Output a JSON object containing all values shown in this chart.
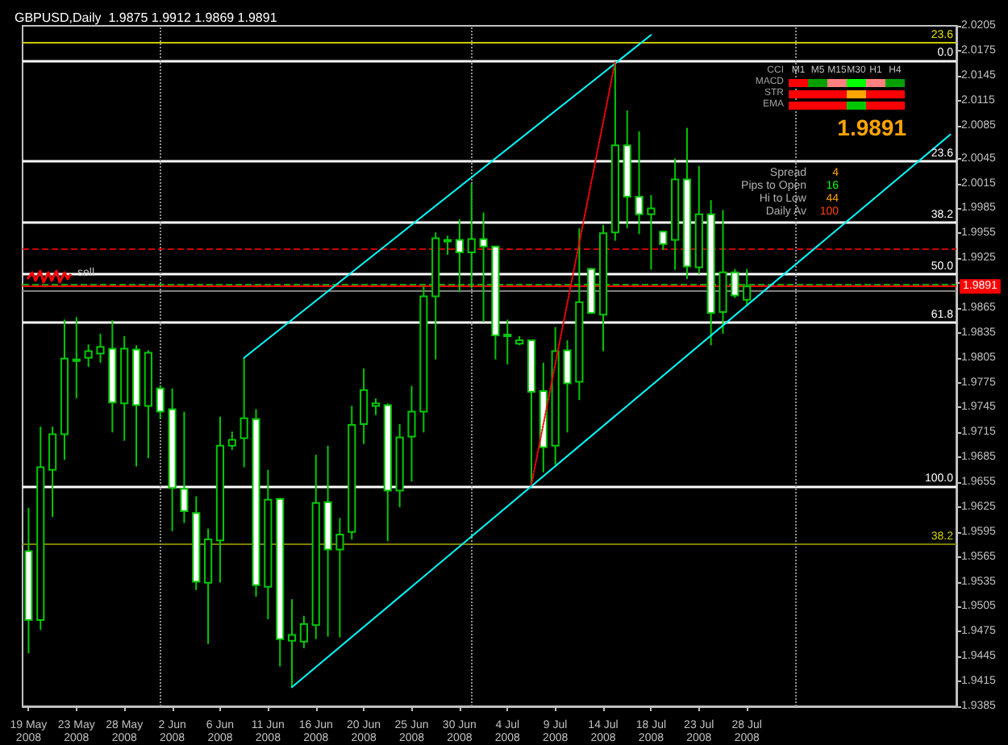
{
  "chart_data": {
    "type": "candlestick",
    "title": "GBPUSD,Daily  1.9875 1.9912 1.9869 1.9891",
    "color": "#00c800",
    "categories": [
      "19 May 2008",
      null,
      null,
      null,
      "23 May 2008",
      null,
      null,
      null,
      "28 May 2008",
      null,
      null,
      null,
      "2 Jun 2008",
      null,
      null,
      null,
      "6 Jun 2008",
      null,
      null,
      null,
      "11 Jun 2008",
      null,
      null,
      null,
      "16 Jun 2008",
      null,
      null,
      null,
      "20 Jun 2008",
      null,
      null,
      null,
      "25 Jun 2008",
      null,
      null,
      null,
      "30 Jun 2008",
      null,
      null,
      null,
      "4 Jul 2008",
      null,
      null,
      null,
      "9 Jul 2008",
      null,
      null,
      null,
      "14 Jul 2008",
      null,
      null,
      null,
      "18 Jul 2008",
      null,
      null,
      null,
      "23 Jul 2008",
      null,
      null,
      null,
      "28 Jul 2008",
      null,
      null,
      null,
      null,
      null,
      null,
      null,
      null,
      null,
      null,
      null,
      null,
      null,
      null,
      null,
      null,
      null
    ],
    "ohlc": [
      [
        1.9572,
        1.9624,
        1.9449,
        1.9489
      ],
      [
        1.9489,
        1.9722,
        1.9477,
        1.9673
      ],
      [
        1.967,
        1.9722,
        1.9613,
        1.9713
      ],
      [
        1.9713,
        1.9851,
        1.9682,
        1.9804
      ],
      [
        1.9802,
        1.9854,
        1.9756,
        1.9803
      ],
      [
        1.9805,
        1.9821,
        1.9794,
        1.9813
      ],
      [
        1.981,
        1.9834,
        1.9799,
        1.9818
      ],
      [
        1.9816,
        1.985,
        1.9715,
        1.9751
      ],
      [
        1.975,
        1.9831,
        1.9705,
        1.9816
      ],
      [
        1.9815,
        1.982,
        1.9674,
        1.9748
      ],
      [
        1.9747,
        1.9814,
        1.9684,
        1.9811
      ],
      [
        1.9768,
        1.9772,
        1.9731,
        1.974
      ],
      [
        1.9743,
        1.9768,
        1.9596,
        1.9648
      ],
      [
        1.9647,
        1.974,
        1.9606,
        1.962
      ],
      [
        1.9618,
        1.9638,
        1.9525,
        1.9535
      ],
      [
        1.9534,
        1.9599,
        1.946,
        1.9586
      ],
      [
        1.9585,
        1.9734,
        1.9534,
        1.9699
      ],
      [
        1.9699,
        1.9716,
        1.9694,
        1.9706
      ],
      [
        1.9708,
        1.9805,
        1.9673,
        1.9732
      ],
      [
        1.9731,
        1.9743,
        1.9517,
        1.9531
      ],
      [
        1.9529,
        1.967,
        1.949,
        1.9634
      ],
      [
        1.9635,
        1.9636,
        1.9433,
        1.9466
      ],
      [
        1.9464,
        1.9514,
        1.9408,
        1.9471
      ],
      [
        1.9463,
        1.9494,
        1.9455,
        1.9484
      ],
      [
        1.9483,
        1.9688,
        1.9466,
        1.963
      ],
      [
        1.9631,
        1.9699,
        1.9469,
        1.9574
      ],
      [
        1.9574,
        1.9612,
        1.9468,
        1.9592
      ],
      [
        1.9595,
        1.9747,
        1.9586,
        1.9724
      ],
      [
        1.9725,
        1.9792,
        1.9701,
        1.9766
      ],
      [
        1.9747,
        1.9756,
        1.9736,
        1.975
      ],
      [
        1.9748,
        1.975,
        1.9584,
        1.9645
      ],
      [
        1.9645,
        1.9725,
        1.9625,
        1.9709
      ],
      [
        1.971,
        1.9771,
        1.9656,
        1.974
      ],
      [
        1.974,
        1.9891,
        1.9715,
        1.9879
      ],
      [
        1.9879,
        1.9956,
        1.9803,
        1.9949
      ],
      [
        1.9946,
        1.9952,
        1.9929,
        1.9947
      ],
      [
        1.9947,
        1.9972,
        1.9884,
        1.9932
      ],
      [
        1.9932,
        2.0015,
        1.9889,
        1.9948
      ],
      [
        1.9948,
        1.998,
        1.9848,
        1.9939
      ],
      [
        1.9939,
        1.994,
        1.9803,
        1.9832
      ],
      [
        1.9833,
        1.9851,
        1.9797,
        1.9831
      ],
      [
        1.9822,
        1.9831,
        1.982,
        1.9826
      ],
      [
        1.9826,
        1.9827,
        1.9652,
        1.9764
      ],
      [
        1.9765,
        1.9799,
        1.9667,
        1.9697
      ],
      [
        1.9699,
        1.9842,
        1.9676,
        1.9813
      ],
      [
        1.9814,
        1.9826,
        1.9715,
        1.9774
      ],
      [
        1.9776,
        1.9961,
        1.9754,
        1.9872
      ],
      [
        1.9912,
        1.9913,
        1.9858,
        1.9859
      ],
      [
        1.9857,
        1.9965,
        1.9813,
        1.9955
      ],
      [
        1.9956,
        2.0162,
        1.9946,
        2.0061
      ],
      [
        2.0061,
        2.0103,
        1.9961,
        1.9999
      ],
      [
        1.9999,
        2.0078,
        1.9954,
        1.9978
      ],
      [
        1.9978,
        2.0001,
        1.9911,
        1.9985
      ],
      [
        1.9957,
        1.9958,
        1.9935,
        1.9942
      ],
      [
        1.9947,
        2.0045,
        1.9911,
        2.002
      ],
      [
        2.002,
        2.0082,
        1.99,
        1.9915
      ],
      [
        1.9914,
        2.0036,
        1.9906,
        1.9978
      ],
      [
        1.9978,
        1.9995,
        1.982,
        1.9859
      ],
      [
        1.986,
        1.9983,
        1.9834,
        1.9908
      ],
      [
        1.9908,
        1.9912,
        1.9877,
        1.988
      ],
      [
        1.9875,
        1.9912,
        1.9869,
        1.9891
      ],
      null,
      null,
      null,
      null,
      null,
      null,
      null,
      null,
      null,
      null,
      null,
      null,
      null,
      null,
      null,
      null,
      null
    ],
    "series": [
      {
        "type": "line",
        "color": "#00ffff",
        "values": [
          null,
          null,
          null,
          null,
          null,
          null,
          null,
          null,
          null,
          null,
          null,
          null,
          null,
          null,
          null,
          null,
          null,
          null,
          1.9805,
          null,
          null,
          null,
          null,
          null,
          null,
          null,
          null,
          null,
          null,
          null,
          null,
          null,
          null,
          null,
          null,
          null,
          null,
          null,
          null,
          null,
          null,
          null,
          null,
          null,
          null,
          null,
          null,
          null,
          null,
          null,
          null,
          null,
          2.0194,
          null,
          null,
          null,
          null,
          null,
          null,
          null,
          null,
          null,
          null,
          null,
          null,
          null,
          null,
          null,
          null,
          null,
          null,
          null,
          null,
          null,
          null,
          null,
          null,
          null
        ]
      },
      {
        "type": "line",
        "color": "#00ffff",
        "values": [
          null,
          null,
          null,
          null,
          null,
          null,
          null,
          null,
          null,
          null,
          null,
          null,
          null,
          null,
          null,
          null,
          null,
          null,
          null,
          null,
          null,
          null,
          1.9408,
          null,
          null,
          null,
          null,
          null,
          null,
          null,
          null,
          null,
          null,
          null,
          null,
          null,
          null,
          null,
          null,
          null,
          null,
          null,
          null,
          null,
          null,
          null,
          null,
          null,
          null,
          null,
          null,
          null,
          null,
          null,
          null,
          null,
          null,
          null,
          null,
          null,
          null,
          null,
          null,
          null,
          null,
          null,
          null,
          null,
          null,
          null,
          null,
          null,
          null,
          null,
          null,
          null,
          null,
          2.0074
        ]
      },
      {
        "type": "line",
        "color": "#ff0000",
        "line_style": "dotted",
        "values": [
          null,
          null,
          null,
          null,
          null,
          null,
          null,
          null,
          null,
          null,
          null,
          null,
          null,
          null,
          null,
          null,
          null,
          null,
          null,
          null,
          null,
          null,
          null,
          null,
          null,
          null,
          null,
          null,
          null,
          null,
          null,
          null,
          null,
          null,
          null,
          null,
          null,
          null,
          null,
          null,
          null,
          null,
          1.9652,
          null,
          null,
          null,
          null,
          null,
          null,
          2.0162,
          null,
          null,
          null,
          null,
          null,
          null,
          null,
          null,
          null,
          null,
          null,
          null,
          null,
          null,
          null,
          null,
          null,
          null,
          null,
          null,
          null,
          null,
          null,
          null,
          null,
          null,
          null,
          null
        ]
      }
    ],
    "grid": "x",
    "ylim": [
      1.9385,
      2.0205
    ],
    "yticks": [
      1.9385,
      1.9415,
      1.9445,
      1.9475,
      1.9505,
      1.9535,
      1.9565,
      1.9595,
      1.9625,
      1.9655,
      1.9685,
      1.9715,
      1.9745,
      1.9775,
      1.9805,
      1.9835,
      1.9865,
      {
        "value": 1.9895,
        "label": null
      },
      1.9925,
      1.9955,
      1.9985,
      2.0015,
      2.0045,
      2.0085,
      2.0115,
      2.0145,
      2.0175,
      2.0205
    ],
    "ref_lines": [
      {
        "axis": "y",
        "value": 2.0185,
        "color": "#c8c800"
      },
      {
        "axis": "y",
        "value": 1.958,
        "color": "#808000"
      },
      {
        "axis": "y",
        "value": 2.0163,
        "color": "#ffffff"
      },
      {
        "axis": "y",
        "value": 2.0042,
        "color": "#ffffff"
      },
      {
        "axis": "y",
        "value": 1.9968,
        "color": "#ffffff"
      },
      {
        "axis": "y",
        "value": 1.9906,
        "color": "#ffffff"
      },
      {
        "axis": "y",
        "value": 1.9847,
        "color": "#ffffff"
      },
      {
        "axis": "y",
        "value": 1.965,
        "color": "#ffffff"
      },
      {
        "axis": "y",
        "value": 1.9936,
        "color": "#cc0000",
        "line_style": "dashed"
      },
      {
        "axis": "y",
        "value": 1.9894,
        "color": "#00a000",
        "line_style": "dashed"
      },
      {
        "axis": "y",
        "value": 1.9891,
        "label": "1.9891",
        "color": "#ff0000"
      },
      {
        "axis": "y",
        "value": 1.9886,
        "color": "#808080"
      }
    ],
    "annotations": [
      "CCI",
      "MACD",
      "STR",
      "EMA",
      "M1",
      "M5",
      "M15",
      "M30",
      "H1",
      "H4",
      "1.9891",
      "Spread",
      "4",
      "Pips to Open",
      "16",
      "Hi to Low",
      "44",
      "Daily Av",
      "100",
      {
        "text": "23.6",
        "y": 2.0185
      },
      {
        "text": "0.0",
        "y": 2.0163
      },
      {
        "text": "23.6",
        "y": 2.0042
      },
      {
        "text": "38.2",
        "y": 1.9968
      },
      {
        "text": "50.0",
        "y": 1.9906
      },
      {
        "text": "61.8",
        "y": 1.9847
      },
      {
        "text": "100.0",
        "y": 1.965
      },
      {
        "text": "38.2",
        "y": 1.958
      },
      {
        "text": "sell",
        "y": 1.9894
      }
    ]
  }
}
